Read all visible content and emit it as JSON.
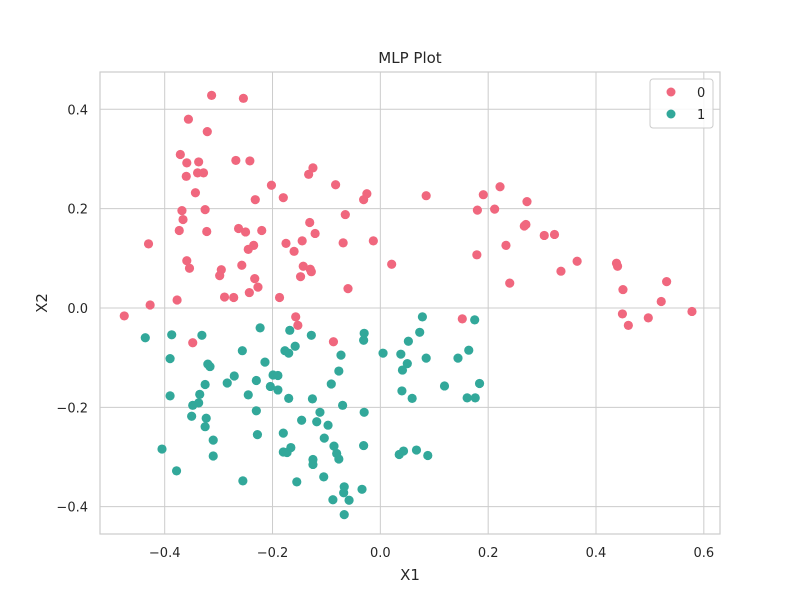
{
  "chart_data": {
    "type": "scatter",
    "title": "MLP Plot",
    "xlabel": "X1",
    "ylabel": "X2",
    "xlim": [
      -0.52,
      0.63
    ],
    "ylim": [
      -0.455,
      0.475
    ],
    "xticks": [
      -0.4,
      -0.2,
      0.0,
      0.2,
      0.4,
      0.6
    ],
    "xtick_labels": [
      "−0.4",
      "−0.2",
      "0.0",
      "0.2",
      "0.4",
      "0.6"
    ],
    "yticks": [
      -0.4,
      -0.2,
      0.0,
      0.2,
      0.4
    ],
    "ytick_labels": [
      "−0.4",
      "−0.2",
      "0.0",
      "0.2",
      "0.4"
    ],
    "grid": true,
    "legend_position": "top-right",
    "series": [
      {
        "name": "0",
        "color": "#f0677e",
        "points": [
          [
            -0.313,
            0.428
          ],
          [
            -0.254,
            0.422
          ],
          [
            -0.356,
            0.38
          ],
          [
            -0.321,
            0.355
          ],
          [
            -0.371,
            0.309
          ],
          [
            -0.337,
            0.294
          ],
          [
            -0.359,
            0.292
          ],
          [
            -0.328,
            0.272
          ],
          [
            -0.339,
            0.272
          ],
          [
            -0.36,
            0.265
          ],
          [
            -0.268,
            0.297
          ],
          [
            -0.242,
            0.296
          ],
          [
            -0.232,
            0.218
          ],
          [
            -0.202,
            0.247
          ],
          [
            -0.125,
            0.282
          ],
          [
            -0.133,
            0.269
          ],
          [
            -0.083,
            0.248
          ],
          [
            -0.025,
            0.23
          ],
          [
            -0.031,
            0.218
          ],
          [
            -0.343,
            0.232
          ],
          [
            -0.368,
            0.196
          ],
          [
            -0.366,
            0.178
          ],
          [
            -0.373,
            0.156
          ],
          [
            -0.325,
            0.198
          ],
          [
            -0.322,
            0.154
          ],
          [
            -0.263,
            0.16
          ],
          [
            -0.25,
            0.153
          ],
          [
            -0.22,
            0.156
          ],
          [
            -0.235,
            0.126
          ],
          [
            -0.245,
            0.118
          ],
          [
            -0.18,
            0.222
          ],
          [
            -0.131,
            0.172
          ],
          [
            -0.121,
            0.15
          ],
          [
            -0.065,
            0.188
          ],
          [
            -0.145,
            0.135
          ],
          [
            -0.175,
            0.13
          ],
          [
            -0.16,
            0.114
          ],
          [
            -0.069,
            0.131
          ],
          [
            -0.013,
            0.135
          ],
          [
            0.085,
            0.226
          ],
          [
            -0.43,
            0.129
          ],
          [
            -0.359,
            0.095
          ],
          [
            -0.354,
            0.08
          ],
          [
            -0.295,
            0.077
          ],
          [
            -0.298,
            0.065
          ],
          [
            -0.257,
            0.086
          ],
          [
            -0.233,
            0.059
          ],
          [
            -0.227,
            0.042
          ],
          [
            -0.243,
            0.031
          ],
          [
            -0.272,
            0.021
          ],
          [
            -0.289,
            0.022
          ],
          [
            -0.143,
            0.084
          ],
          [
            -0.13,
            0.078
          ],
          [
            -0.128,
            0.073
          ],
          [
            -0.148,
            0.063
          ],
          [
            -0.06,
            0.039
          ],
          [
            -0.187,
            0.021
          ],
          [
            -0.377,
            0.016
          ],
          [
            -0.427,
            0.006
          ],
          [
            -0.475,
            -0.016
          ],
          [
            -0.157,
            -0.018
          ],
          [
            -0.153,
            -0.035
          ],
          [
            -0.348,
            -0.07
          ],
          [
            -0.087,
            -0.068
          ],
          [
            0.021,
            0.088
          ],
          [
            0.152,
            -0.022
          ],
          [
            0.191,
            0.228
          ],
          [
            0.222,
            0.244
          ],
          [
            0.272,
            0.214
          ],
          [
            0.212,
            0.199
          ],
          [
            0.18,
            0.197
          ],
          [
            0.267,
            0.165
          ],
          [
            0.27,
            0.168
          ],
          [
            0.304,
            0.146
          ],
          [
            0.323,
            0.148
          ],
          [
            0.233,
            0.126
          ],
          [
            0.179,
            0.107
          ],
          [
            0.24,
            0.05
          ],
          [
            0.335,
            0.074
          ],
          [
            0.365,
            0.094
          ],
          [
            0.438,
            0.09
          ],
          [
            0.44,
            0.084
          ],
          [
            0.45,
            0.037
          ],
          [
            0.531,
            0.053
          ],
          [
            0.521,
            0.013
          ],
          [
            0.449,
            -0.012
          ],
          [
            0.46,
            -0.035
          ],
          [
            0.497,
            -0.02
          ],
          [
            0.578,
            -0.007
          ]
        ]
      },
      {
        "name": "1",
        "color": "#32a89a",
        "points": [
          [
            -0.436,
            -0.06
          ],
          [
            -0.387,
            -0.054
          ],
          [
            -0.331,
            -0.055
          ],
          [
            -0.256,
            -0.086
          ],
          [
            -0.223,
            -0.04
          ],
          [
            -0.168,
            -0.045
          ],
          [
            -0.128,
            -0.055
          ],
          [
            -0.073,
            -0.095
          ],
          [
            -0.03,
            -0.051
          ],
          [
            -0.031,
            -0.065
          ],
          [
            0.005,
            -0.091
          ],
          [
            0.038,
            -0.093
          ],
          [
            0.078,
            -0.018
          ],
          [
            0.073,
            -0.049
          ],
          [
            0.052,
            -0.067
          ],
          [
            0.175,
            -0.024
          ],
          [
            -0.39,
            -0.102
          ],
          [
            -0.32,
            -0.113
          ],
          [
            -0.316,
            -0.118
          ],
          [
            -0.214,
            -0.109
          ],
          [
            -0.17,
            -0.091
          ],
          [
            -0.177,
            -0.086
          ],
          [
            -0.158,
            -0.077
          ],
          [
            -0.077,
            -0.127
          ],
          [
            0.05,
            -0.112
          ],
          [
            0.041,
            -0.125
          ],
          [
            0.085,
            -0.101
          ],
          [
            0.144,
            -0.101
          ],
          [
            0.164,
            -0.085
          ],
          [
            -0.325,
            -0.154
          ],
          [
            -0.335,
            -0.174
          ],
          [
            -0.348,
            -0.196
          ],
          [
            -0.337,
            -0.191
          ],
          [
            -0.284,
            -0.151
          ],
          [
            -0.271,
            -0.137
          ],
          [
            -0.23,
            -0.146
          ],
          [
            -0.199,
            -0.135
          ],
          [
            -0.19,
            -0.136
          ],
          [
            -0.204,
            -0.158
          ],
          [
            -0.19,
            -0.165
          ],
          [
            -0.245,
            -0.175
          ],
          [
            -0.17,
            -0.182
          ],
          [
            -0.126,
            -0.183
          ],
          [
            -0.091,
            -0.153
          ],
          [
            -0.07,
            -0.196
          ],
          [
            0.04,
            -0.167
          ],
          [
            0.059,
            -0.182
          ],
          [
            0.119,
            -0.157
          ],
          [
            0.161,
            -0.181
          ],
          [
            0.176,
            -0.181
          ],
          [
            0.184,
            -0.152
          ],
          [
            -0.39,
            -0.177
          ],
          [
            -0.35,
            -0.218
          ],
          [
            -0.323,
            -0.222
          ],
          [
            -0.325,
            -0.239
          ],
          [
            -0.23,
            -0.207
          ],
          [
            -0.112,
            -0.21
          ],
          [
            -0.118,
            -0.229
          ],
          [
            -0.146,
            -0.226
          ],
          [
            -0.097,
            -0.236
          ],
          [
            -0.03,
            -0.21
          ],
          [
            -0.31,
            -0.266
          ],
          [
            -0.228,
            -0.255
          ],
          [
            -0.18,
            -0.252
          ],
          [
            -0.104,
            -0.262
          ],
          [
            -0.086,
            -0.278
          ],
          [
            -0.166,
            -0.281
          ],
          [
            -0.173,
            -0.291
          ],
          [
            -0.18,
            -0.29
          ],
          [
            -0.031,
            -0.277
          ],
          [
            -0.405,
            -0.284
          ],
          [
            -0.31,
            -0.298
          ],
          [
            -0.378,
            -0.328
          ],
          [
            -0.255,
            -0.348
          ],
          [
            -0.155,
            -0.35
          ],
          [
            -0.125,
            -0.305
          ],
          [
            -0.125,
            -0.315
          ],
          [
            -0.081,
            -0.293
          ],
          [
            -0.077,
            -0.304
          ],
          [
            -0.105,
            -0.34
          ],
          [
            -0.067,
            -0.36
          ],
          [
            -0.068,
            -0.372
          ],
          [
            -0.034,
            -0.365
          ],
          [
            -0.088,
            -0.386
          ],
          [
            -0.058,
            -0.387
          ],
          [
            -0.067,
            -0.416
          ],
          [
            0.035,
            -0.295
          ],
          [
            0.043,
            -0.288
          ],
          [
            0.067,
            -0.286
          ],
          [
            0.088,
            -0.297
          ]
        ]
      }
    ]
  }
}
